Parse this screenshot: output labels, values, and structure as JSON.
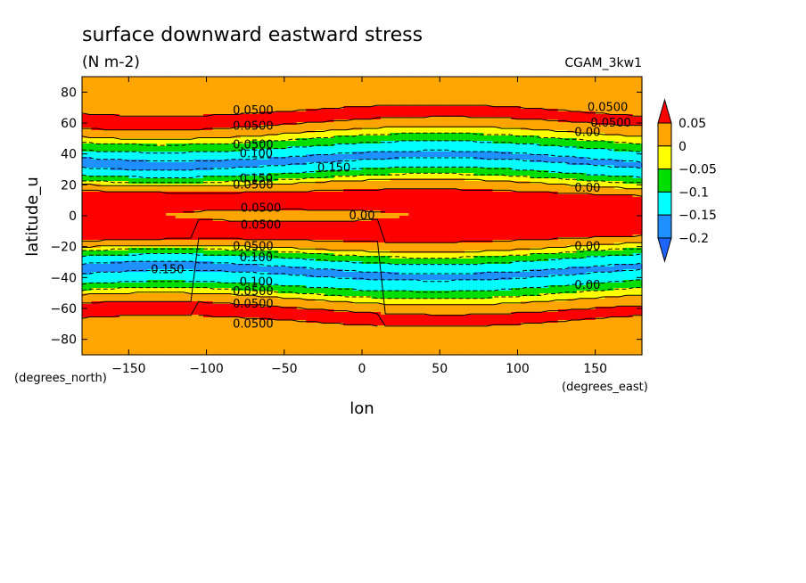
{
  "chart_data": {
    "type": "heatmap",
    "title": "surface downward eastward stress",
    "units": "(N m-2)",
    "case_name": "CGAM_3kw1",
    "xlabel": "lon",
    "ylabel": "latitude_u",
    "x_units": "(degrees_east)",
    "y_units": "(degrees_north)",
    "xlim": [
      -180,
      180
    ],
    "ylim": [
      -90,
      90
    ],
    "x_ticks": [
      -150,
      -100,
      -50,
      0,
      50,
      100,
      150
    ],
    "y_ticks": [
      80,
      60,
      40,
      20,
      0,
      -20,
      -40,
      -60,
      -80
    ],
    "colorbar": {
      "levels": [
        0.05,
        0,
        -0.05,
        -0.1,
        -0.15,
        -0.2
      ],
      "tick_labels": [
        "0.05",
        "0",
        "−0.05",
        "−0.1",
        "−0.15",
        "−0.2"
      ],
      "colors": [
        "#ff0000",
        "#ffa500",
        "#ffff00",
        "#00dd00",
        "#00ffff",
        "#1e90ff",
        "#1e64ff"
      ]
    },
    "zonal_profile": {
      "latitudes": [
        90,
        80,
        72,
        62,
        55,
        50,
        45,
        40,
        35,
        30,
        25,
        20,
        14,
        8,
        4,
        0,
        -4,
        -8,
        -14,
        -20,
        -25,
        -30,
        -35,
        -40,
        -45,
        -50,
        -55,
        -62,
        -72,
        -80,
        -90
      ],
      "values_west": [
        0.01,
        0.02,
        0.04,
        0.07,
        0.02,
        -0.05,
        -0.1,
        -0.15,
        -0.16,
        -0.12,
        -0.06,
        0.04,
        0.07,
        0.08,
        0.06,
        0.06,
        0.07,
        0.08,
        0.07,
        0.04,
        -0.06,
        -0.12,
        -0.16,
        -0.15,
        -0.12,
        -0.06,
        0.02,
        0.07,
        0.04,
        0.02,
        0.01
      ],
      "values_east": [
        0.01,
        0.02,
        0.04,
        0.06,
        0.01,
        -0.04,
        -0.09,
        -0.14,
        -0.16,
        -0.13,
        -0.08,
        -0.01,
        0.05,
        0.06,
        0.07,
        0.07,
        0.07,
        0.06,
        0.05,
        -0.01,
        -0.08,
        -0.13,
        -0.16,
        -0.14,
        -0.09,
        -0.04,
        0.01,
        0.06,
        0.04,
        0.02,
        0.01
      ]
    },
    "contour_labels": [
      {
        "text": "0.0500",
        "lon": -70,
        "lat": 68
      },
      {
        "text": "0.0500",
        "lon": -70,
        "lat": 58
      },
      {
        "text": "0.0500",
        "lon": -70,
        "lat": 46
      },
      {
        "text": "0.100",
        "lon": -68,
        "lat": 40
      },
      {
        "text": "0.150",
        "lon": -18,
        "lat": 31
      },
      {
        "text": "0.150",
        "lon": -68,
        "lat": 24
      },
      {
        "text": "0.0500",
        "lon": -70,
        "lat": 20
      },
      {
        "text": "0.0500",
        "lon": -65,
        "lat": 5
      },
      {
        "text": "0.0500",
        "lon": -65,
        "lat": -6
      },
      {
        "text": "0.00",
        "lon": 0,
        "lat": 0
      },
      {
        "text": "0.0500",
        "lon": -70,
        "lat": -20
      },
      {
        "text": "0.100",
        "lon": -68,
        "lat": -27
      },
      {
        "text": "0.150",
        "lon": -125,
        "lat": -35
      },
      {
        "text": "0.100",
        "lon": -68,
        "lat": -43
      },
      {
        "text": "0.0500",
        "lon": -70,
        "lat": -49
      },
      {
        "text": "0.0500",
        "lon": -70,
        "lat": -57
      },
      {
        "text": "0.0500",
        "lon": -70,
        "lat": -70
      },
      {
        "text": "0.0500",
        "lon": 158,
        "lat": 70
      },
      {
        "text": "0.0500",
        "lon": 160,
        "lat": 60
      },
      {
        "text": "0.00",
        "lon": 145,
        "lat": 54
      },
      {
        "text": "0.00",
        "lon": 145,
        "lat": 18
      },
      {
        "text": "0.00",
        "lon": 145,
        "lat": -20
      },
      {
        "text": "0.00",
        "lon": 145,
        "lat": -45
      }
    ]
  }
}
